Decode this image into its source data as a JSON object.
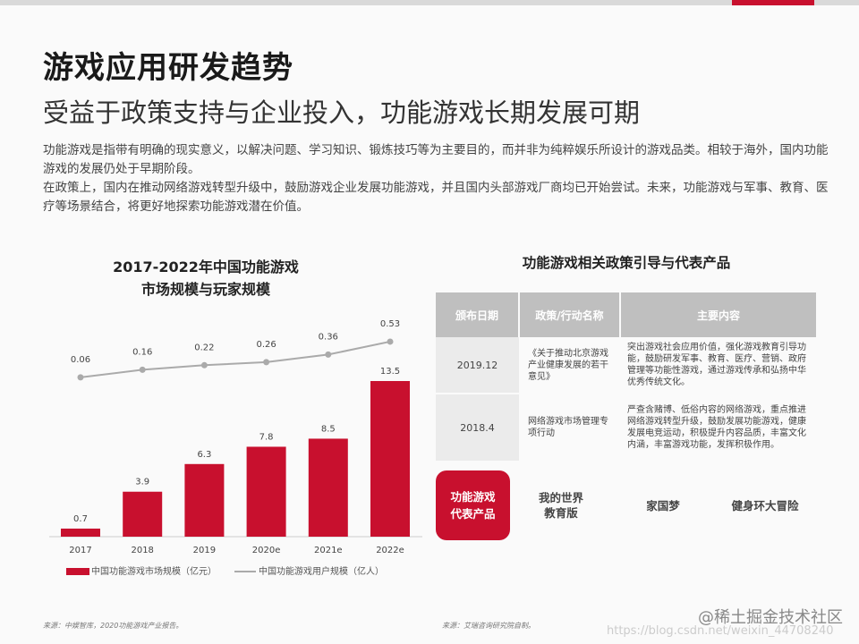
{
  "header": {
    "title": "游戏应用研发趋势",
    "subtitle": "受益于政策支持与企业投入，功能游戏长期发展可期"
  },
  "intro": [
    "功能游戏是指带有明确的现实意义，以解决问题、学习知识、锻炼技巧等为主要目的，而并非为纯粹娱乐所设计的游戏品类。相较于海外，国内功能游戏的发展仍处于早期阶段。",
    "在政策上，国内在推动网络游戏转型升级中，鼓励游戏企业发展功能游戏，并且国内头部游戏厂商均已开始尝试。未来，功能游戏与军事、教育、医疗等场景结合，将更好地探索功能游戏潜在价值。"
  ],
  "chart_data": {
    "type": "bar+line",
    "title_line1": "2017-2022年中国功能游戏",
    "title_line2": "市场规模与玩家规模",
    "categories": [
      "2017",
      "2018",
      "2019",
      "2020e",
      "2021e",
      "2022e"
    ],
    "series": [
      {
        "name": "中国功能游戏市场规模（亿元）",
        "type": "bar",
        "values": [
          0.7,
          3.9,
          6.3,
          7.8,
          8.5,
          13.5
        ],
        "color": "#c8102e"
      },
      {
        "name": "中国功能游戏用户规模（亿人）",
        "type": "line",
        "values": [
          0.06,
          0.16,
          0.22,
          0.26,
          0.36,
          0.53
        ],
        "color": "#aaaaaa"
      }
    ],
    "legend": "bottom"
  },
  "policy": {
    "title": "功能游戏相关政策引导与代表产品",
    "headers": [
      "颁布日期",
      "政策/行动名称",
      "主要内容"
    ],
    "rows": [
      {
        "date": "2019.12",
        "name": "《关于推动北京游戏产业健康发展的若干意见》",
        "content": "突出游戏社会应用价值，强化游戏教育引导功能，鼓励研发军事、教育、医疗、营销、政府管理等功能性游戏，通过游戏传承和弘扬中华优秀传统文化。"
      },
      {
        "date": "2018.4",
        "name": "网络游戏市场管理专项行动",
        "content": "严查含赌博、低俗内容的网络游戏，重点推进网络游戏转型升级，鼓励发展功能游戏，健康发展电竞运动，积极提升内容品质，丰富文化内涵，丰富游戏功能，发挥积极作用。"
      }
    ]
  },
  "products": {
    "label_line1": "功能游戏",
    "label_line2": "代表产品",
    "items": [
      {
        "line1": "我的世界",
        "line2": "教育版"
      },
      {
        "line1": "家国梦",
        "line2": ""
      },
      {
        "line1": "健身环大冒险",
        "line2": ""
      }
    ]
  },
  "sources": {
    "left": "来源：中娱智库，2020功能游戏产业报告。",
    "right": "来源：艾瑞咨询研究院自制。"
  },
  "watermarks": {
    "brand": "@稀土掘金技术社区",
    "url": "https://blog.csdn.net/weixin_44708240"
  },
  "colors": {
    "accent": "#c8102e",
    "header_gray": "#bfbfbf"
  }
}
